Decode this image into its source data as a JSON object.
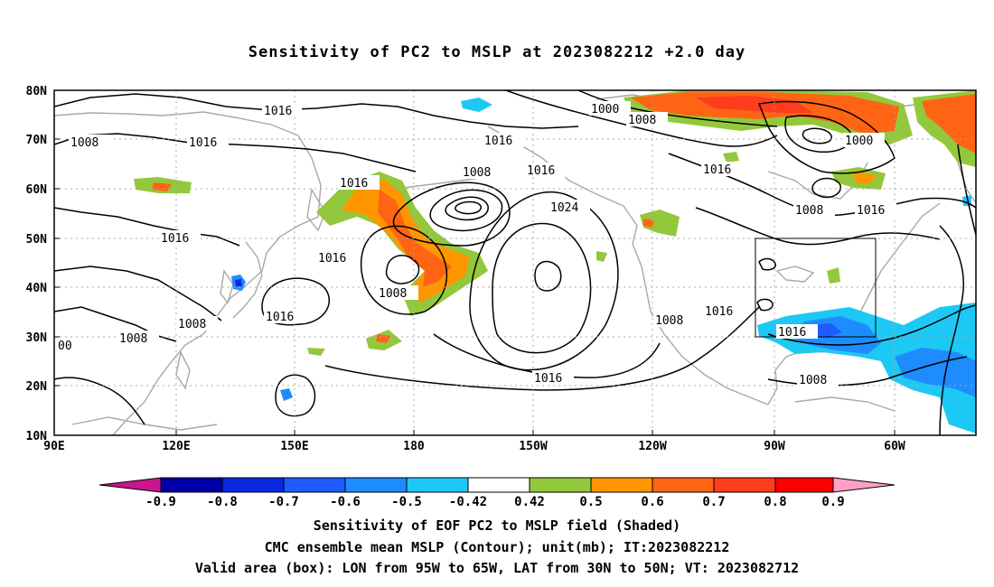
{
  "title": "Sensitivity of PC2 to MSLP at 2023082212 +2.0 day",
  "map": {
    "lon_range": [
      "90E",
      "40W"
    ],
    "lat_range": [
      "10N",
      "80N"
    ],
    "lat_labels": [
      "80N",
      "70N",
      "60N",
      "50N",
      "40N",
      "30N",
      "20N",
      "10N"
    ],
    "lon_labels": [
      "90E",
      "120E",
      "150E",
      "180",
      "150W",
      "120W",
      "90W",
      "60W"
    ],
    "contour_labels": [
      {
        "id": "c1",
        "text": "1016"
      },
      {
        "id": "c2",
        "text": "1008"
      },
      {
        "id": "c3",
        "text": "1016"
      },
      {
        "id": "c4",
        "text": "1016"
      },
      {
        "id": "c5",
        "text": "1016"
      },
      {
        "id": "c6",
        "text": "1008"
      },
      {
        "id": "c7",
        "text": "1016"
      },
      {
        "id": "c8",
        "text": "1024"
      },
      {
        "id": "c9",
        "text": "1016"
      },
      {
        "id": "c10",
        "text": "1008"
      },
      {
        "id": "c11",
        "text": "1016"
      },
      {
        "id": "c12",
        "text": "1016"
      },
      {
        "id": "c13",
        "text": "1008"
      },
      {
        "id": "c14",
        "text": "00"
      },
      {
        "id": "c15",
        "text": "1008"
      },
      {
        "id": "c16",
        "text": "1016"
      },
      {
        "id": "c17",
        "text": "1000"
      },
      {
        "id": "c18",
        "text": "1008"
      },
      {
        "id": "c19",
        "text": "1000"
      },
      {
        "id": "c20",
        "text": "1016"
      },
      {
        "id": "c21",
        "text": "1008"
      },
      {
        "id": "c22",
        "text": "1016"
      },
      {
        "id": "c23",
        "text": "1008"
      },
      {
        "id": "c24",
        "text": "1016"
      },
      {
        "id": "c25",
        "text": "1016"
      },
      {
        "id": "c26",
        "text": "1008"
      }
    ],
    "valid_box": {
      "lon": [
        -95,
        -65
      ],
      "lat": [
        30,
        50
      ]
    }
  },
  "colorbar": {
    "labels": [
      "-0.9",
      "-0.8",
      "-0.7",
      "-0.6",
      "-0.5",
      "-0.42",
      "0.42",
      "0.5",
      "0.6",
      "0.7",
      "0.8",
      "0.9"
    ],
    "colors": {
      "min_tri": "#c8168c",
      "c1": "#0000a8",
      "c2": "#0a28e0",
      "c3": "#1e5cff",
      "c4": "#1e8cff",
      "c5": "#1ec8f5",
      "c6": "#ffffff",
      "c7": "#94c83c",
      "c8": "#ff9600",
      "c9": "#ff6414",
      "c10": "#ff3c1e",
      "c11": "#ff0000",
      "max_tri": "#ffa0c8"
    }
  },
  "captions": [
    "Sensitivity of EOF PC2 to MSLP field (Shaded)",
    "CMC ensemble mean MSLP (Contour); unit(mb); IT:2023082212",
    "Valid area (box): LON from 95W to 65W, LAT from 30N to 50N; VT: 2023082712"
  ]
}
